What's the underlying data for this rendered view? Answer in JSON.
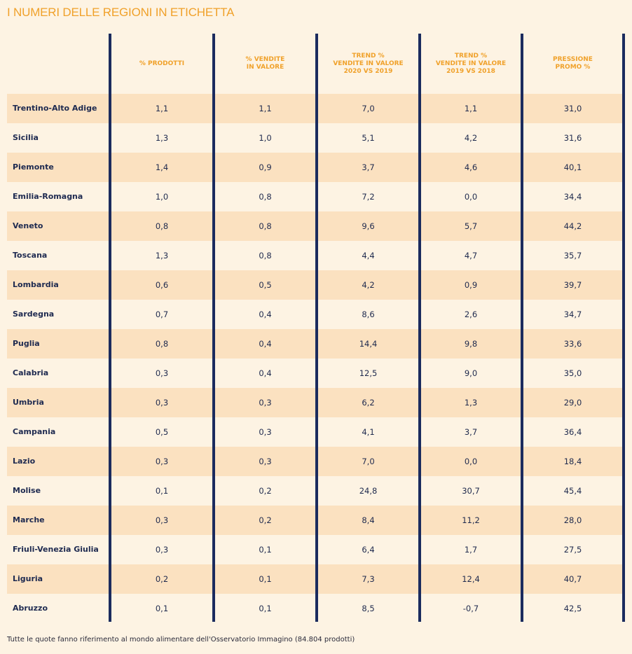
{
  "title": "I NUMERI DELLE REGIONI IN ETICHETTA",
  "footnote": "Tutte le quote fanno riferimento al mondo alimentare dell'Osservatorio Immagino (84.804 prodotti)",
  "colors": {
    "background": "#fdf3e3",
    "row_shade": "#fbe1c0",
    "header_text": "#f0a12a",
    "divider": "#1b2b5e",
    "body_text": "#1f2a4e"
  },
  "chart_data": {
    "type": "table",
    "title": "I NUMERI DELLE REGIONI IN ETICHETTA",
    "columns": [
      "",
      "% PRODOTTI",
      "% VENDITE\nIN VALORE",
      "TREND %\nVENDITE IN VALORE\n2020 VS 2019",
      "TREND %\nVENDITE IN VALORE\n2019 VS 2018",
      "PRESSIONE\nPROMO %"
    ],
    "rows": [
      {
        "region": "Trentino-Alto Adige",
        "values": [
          "1,1",
          "1,1",
          "7,0",
          "1,1",
          "31,0"
        ]
      },
      {
        "region": "Sicilia",
        "values": [
          "1,3",
          "1,0",
          "5,1",
          "4,2",
          "31,6"
        ]
      },
      {
        "region": "Piemonte",
        "values": [
          "1,4",
          "0,9",
          "3,7",
          "4,6",
          "40,1"
        ]
      },
      {
        "region": "Emilia-Romagna",
        "values": [
          "1,0",
          "0,8",
          "7,2",
          "0,0",
          "34,4"
        ]
      },
      {
        "region": "Veneto",
        "values": [
          "0,8",
          "0,8",
          "9,6",
          "5,7",
          "44,2"
        ]
      },
      {
        "region": "Toscana",
        "values": [
          "1,3",
          "0,8",
          "4,4",
          "4,7",
          "35,7"
        ]
      },
      {
        "region": "Lombardia",
        "values": [
          "0,6",
          "0,5",
          "4,2",
          "0,9",
          "39,7"
        ]
      },
      {
        "region": "Sardegna",
        "values": [
          "0,7",
          "0,4",
          "8,6",
          "2,6",
          "34,7"
        ]
      },
      {
        "region": "Puglia",
        "values": [
          "0,8",
          "0,4",
          "14,4",
          "9,8",
          "33,6"
        ]
      },
      {
        "region": "Calabria",
        "values": [
          "0,3",
          "0,4",
          "12,5",
          "9,0",
          "35,0"
        ]
      },
      {
        "region": "Umbria",
        "values": [
          "0,3",
          "0,3",
          "6,2",
          "1,3",
          "29,0"
        ]
      },
      {
        "region": "Campania",
        "values": [
          "0,5",
          "0,3",
          "4,1",
          "3,7",
          "36,4"
        ]
      },
      {
        "region": "Lazio",
        "values": [
          "0,3",
          "0,3",
          "7,0",
          "0,0",
          "18,4"
        ]
      },
      {
        "region": "Molise",
        "values": [
          "0,1",
          "0,2",
          "24,8",
          "30,7",
          "45,4"
        ]
      },
      {
        "region": "Marche",
        "values": [
          "0,3",
          "0,2",
          "8,4",
          "11,2",
          "28,0"
        ]
      },
      {
        "region": "Friuli-Venezia Giulia",
        "values": [
          "0,3",
          "0,1",
          "6,4",
          "1,7",
          "27,5"
        ]
      },
      {
        "region": "Liguria",
        "values": [
          "0,2",
          "0,1",
          "7,3",
          "12,4",
          "40,7"
        ]
      },
      {
        "region": "Abruzzo",
        "values": [
          "0,1",
          "0,1",
          "8,5",
          "-0,7",
          "42,5"
        ]
      }
    ]
  }
}
